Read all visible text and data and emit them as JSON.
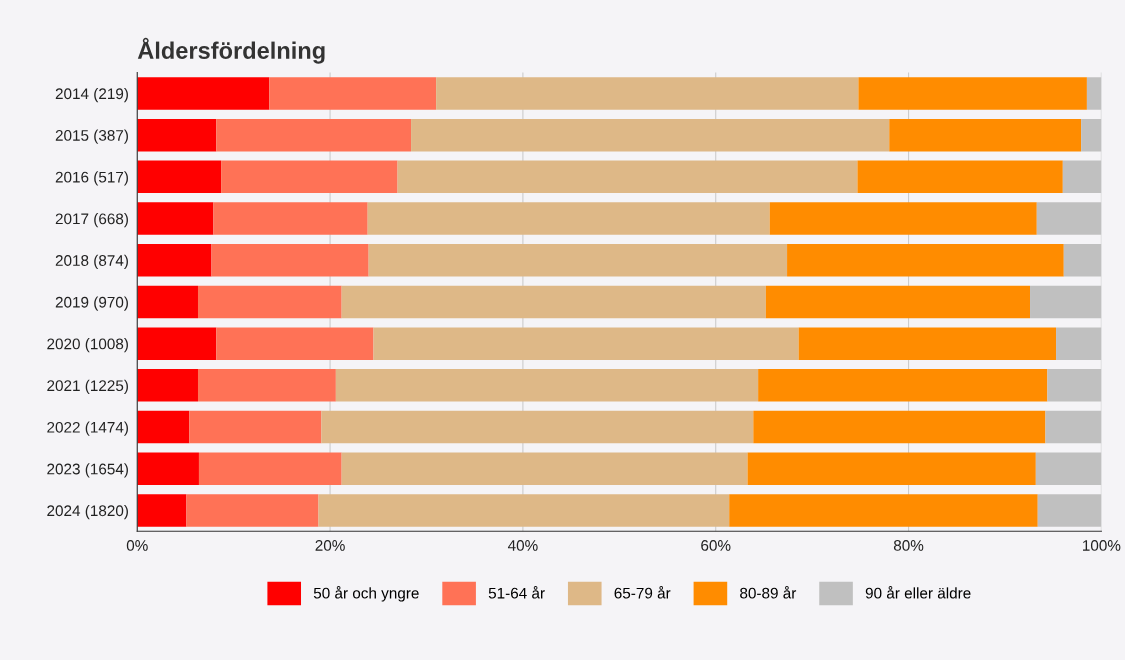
{
  "chart_data": {
    "type": "bar",
    "orientation": "horizontal",
    "stacked": true,
    "title": "Åldersfördelning",
    "categories": [
      "2014 (219)",
      "2015 (387)",
      "2016 (517)",
      "2017 (668)",
      "2018 (874)",
      "2019 (970)",
      "2020 (1008)",
      "2021 (1225)",
      "2022 (1474)",
      "2023 (1654)",
      "2024 (1820)"
    ],
    "series": [
      {
        "name": "50 år och yngre",
        "color": "#ff0000",
        "values": [
          13.7,
          8.2,
          8.7,
          7.9,
          7.7,
          6.3,
          8.2,
          6.3,
          5.4,
          6.4,
          5.1
        ]
      },
      {
        "name": "51-64 år",
        "color": "#ff7256",
        "values": [
          17.3,
          20.2,
          18.3,
          16.0,
          16.3,
          14.9,
          16.3,
          14.3,
          13.7,
          14.8,
          13.7
        ]
      },
      {
        "name": "65-79 år",
        "color": "#deb887",
        "values": [
          43.8,
          49.6,
          47.7,
          41.7,
          43.4,
          44.0,
          44.1,
          43.8,
          44.8,
          42.1,
          42.6
        ]
      },
      {
        "name": "80-89 år",
        "color": "#ff8c00",
        "values": [
          23.7,
          19.9,
          21.3,
          27.7,
          28.7,
          27.4,
          26.7,
          30.0,
          30.3,
          29.9,
          32.0
        ]
      },
      {
        "name": "90 år eller äldre",
        "color": "#c0c0c0",
        "values": [
          1.5,
          2.1,
          4.0,
          6.7,
          3.9,
          7.4,
          4.7,
          5.6,
          5.8,
          6.8,
          6.6
        ]
      }
    ],
    "xlim": [
      0,
      100
    ],
    "xticks": [
      {
        "value": 0,
        "label": "0%"
      },
      {
        "value": 20,
        "label": "20%"
      },
      {
        "value": 40,
        "label": "40%"
      },
      {
        "value": 60,
        "label": "60%"
      },
      {
        "value": 80,
        "label": "80%"
      },
      {
        "value": 100,
        "label": "100%"
      }
    ],
    "grid": "x",
    "legend": "bottom"
  }
}
